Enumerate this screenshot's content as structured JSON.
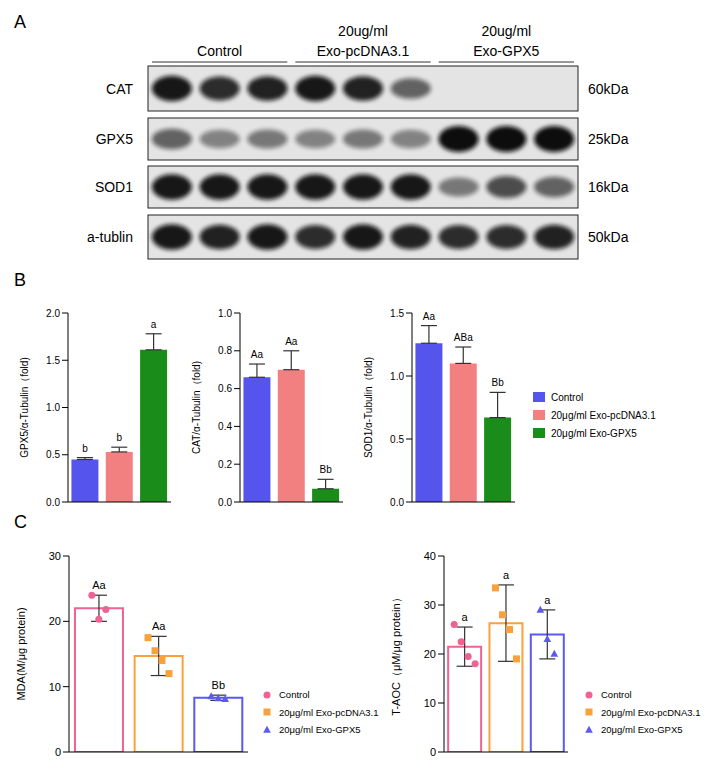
{
  "panels": [
    "A",
    "B",
    "C"
  ],
  "western_blot": {
    "groups": [
      [
        "Control"
      ],
      [
        "20ug/ml",
        "Exo-pcDNA3.1"
      ],
      [
        "20ug/ml",
        "Exo-GPX5"
      ]
    ],
    "proteins": [
      {
        "name": "CAT",
        "size": "60kDa",
        "intensity": [
          0.95,
          0.85,
          0.9,
          0.95,
          0.9,
          0.6,
          0,
          0,
          0
        ]
      },
      {
        "name": "GPX5",
        "size": "25kDa",
        "intensity": [
          0.6,
          0.45,
          0.5,
          0.45,
          0.5,
          0.45,
          1,
          1,
          1
        ]
      },
      {
        "name": "SOD1",
        "size": "16kDa",
        "intensity": [
          0.95,
          0.95,
          0.95,
          0.95,
          0.95,
          0.95,
          0.5,
          0.7,
          0.6
        ]
      },
      {
        "name": "a-tublin",
        "size": "50kDa",
        "intensity": [
          0.95,
          0.9,
          0.95,
          0.85,
          0.95,
          0.9,
          0.85,
          0.85,
          0.9
        ]
      }
    ]
  },
  "chart_data": [
    {
      "type": "bar",
      "panel": "B",
      "ylabel": "GPX5/α-Tubulin（fold)",
      "ylim": [
        0,
        2
      ],
      "yticks": [
        {
          "value": 0,
          "label": "0.0"
        },
        0.5,
        {
          "value": 1,
          "label": "1.0"
        },
        1.5,
        {
          "value": 2,
          "label": "2.0"
        }
      ],
      "grid": false,
      "tick_labels": "y",
      "series": [
        {
          "name": "Control",
          "color": "#5555ee",
          "values": [
            0.45
          ],
          "errors": [
            0.02
          ],
          "annotations": [
            "b"
          ]
        },
        {
          "name": "20μg/ml Exo-pcDNA3.1",
          "color": "#f28080",
          "values": [
            0.53
          ],
          "errors": [
            0.05
          ],
          "annotations": [
            "b"
          ]
        },
        {
          "name": "20μg/ml Exo-GPX5",
          "color": "#1a8c1a",
          "values": [
            1.61
          ],
          "errors": [
            0.17
          ],
          "annotations": [
            "a"
          ]
        }
      ]
    },
    {
      "type": "bar",
      "panel": "B",
      "ylabel": "CAT/α-Tubulin（fold)",
      "ylim": [
        0,
        1
      ],
      "yticks": [
        {
          "value": 0,
          "label": "0.0"
        },
        0.2,
        0.4,
        0.6,
        0.8,
        {
          "value": 1,
          "label": "1.0"
        }
      ],
      "grid": false,
      "tick_labels": "y",
      "series": [
        {
          "name": "Control",
          "color": "#5555ee",
          "values": [
            0.66
          ],
          "errors": [
            0.07
          ],
          "annotations": [
            "Aa"
          ]
        },
        {
          "name": "20μg/ml Exo-pcDNA3.1",
          "color": "#f28080",
          "values": [
            0.7
          ],
          "errors": [
            0.1
          ],
          "annotations": [
            "Aa"
          ]
        },
        {
          "name": "20μg/ml Exo-GPX5",
          "color": "#1a8c1a",
          "values": [
            0.07
          ],
          "errors": [
            0.05
          ],
          "annotations": [
            "Bb"
          ]
        }
      ]
    },
    {
      "type": "bar",
      "panel": "B",
      "ylabel": "SOD1/α-Tubulin（fold)",
      "ylim": [
        0,
        1.5
      ],
      "yticks": [
        {
          "value": 0,
          "label": "0.0"
        },
        0.5,
        {
          "value": 1,
          "label": "1.0"
        },
        1.5
      ],
      "grid": false,
      "tick_labels": "y",
      "legend": "right",
      "series": [
        {
          "name": "Control",
          "color": "#5555ee",
          "values": [
            1.26
          ],
          "errors": [
            0.14
          ],
          "annotations": [
            "Aa"
          ]
        },
        {
          "name": "20μg/ml Exo-pcDNA3.1",
          "color": "#f28080",
          "values": [
            1.1
          ],
          "errors": [
            0.13
          ],
          "annotations": [
            "ABa"
          ]
        },
        {
          "name": "20μg/ml Exo-GPX5",
          "color": "#1a8c1a",
          "values": [
            0.67
          ],
          "errors": [
            0.2
          ],
          "annotations": [
            "Bb"
          ]
        }
      ]
    },
    {
      "type": "bar",
      "panel": "C",
      "ylabel": "MDA(M/μg protein)",
      "ylim": [
        0,
        30
      ],
      "yticks": [
        0,
        10,
        20,
        30
      ],
      "grid": false,
      "tick_labels": "y",
      "legend": "lower right",
      "series": [
        {
          "name": "Control",
          "color": "#f0628f",
          "marker": "circle",
          "values": [
            22.0
          ],
          "errors": [
            2.0
          ],
          "points": [
            24.0,
            20.3,
            21.8
          ],
          "annotations": [
            "Aa"
          ]
        },
        {
          "name": "20μg/ml Exo-pcDNA3.1",
          "color": "#f9a13a",
          "marker": "square",
          "values": [
            14.7
          ],
          "errors": [
            3.0
          ],
          "points": [
            17.5,
            15.5,
            14.0,
            12.0
          ],
          "annotations": [
            "Aa"
          ]
        },
        {
          "name": "20μg/ml Exo-GPX5",
          "color": "#5a5af0",
          "marker": "triangle",
          "values": [
            8.3
          ],
          "errors": [
            0.4
          ],
          "points": [
            8.5,
            8.2,
            8.1
          ],
          "annotations": [
            "Bb"
          ]
        }
      ]
    },
    {
      "type": "bar",
      "panel": "C",
      "ylabel": "T-AOC（μM/μg protein）",
      "ylim": [
        0,
        40
      ],
      "yticks": [
        0,
        10,
        20,
        30,
        40
      ],
      "grid": false,
      "tick_labels": "y",
      "legend": "lower right",
      "series": [
        {
          "name": "Control",
          "color": "#f0628f",
          "marker": "circle",
          "values": [
            21.5
          ],
          "errors": [
            4.0
          ],
          "points": [
            26.0,
            22.5,
            19.5,
            18.0
          ],
          "annotations": [
            "a"
          ]
        },
        {
          "name": "20μg/ml Exo-pcDNA3.1",
          "color": "#f9a13a",
          "marker": "square",
          "values": [
            26.3
          ],
          "errors": [
            7.8
          ],
          "points": [
            33.5,
            28.0,
            25.0,
            19.0
          ],
          "annotations": [
            "a"
          ]
        },
        {
          "name": "20μg/ml Exo-GPX5",
          "color": "#5a5af0",
          "marker": "triangle",
          "values": [
            24.0
          ],
          "errors": [
            5.0
          ],
          "points": [
            29.0,
            23.0,
            20.0
          ],
          "annotations": [
            "a"
          ]
        }
      ]
    }
  ]
}
